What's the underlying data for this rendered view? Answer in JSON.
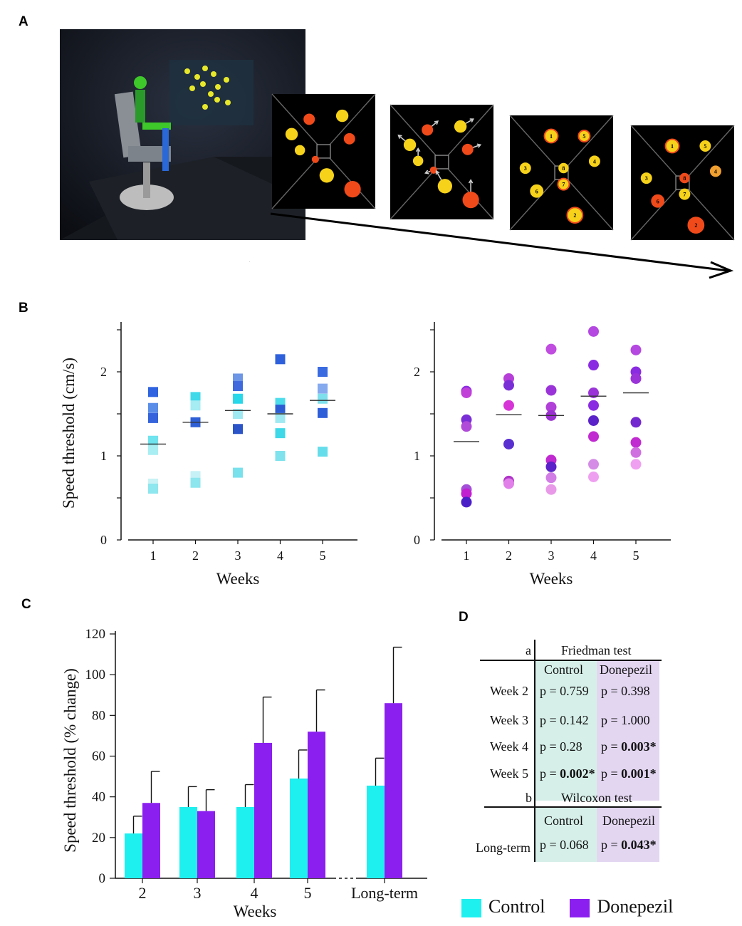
{
  "labels": {
    "a": "A",
    "b": "B",
    "c": "C",
    "d": "D"
  },
  "panel_a": {
    "scene_numbers": [
      "1",
      "2",
      "3",
      "4",
      "5",
      "6",
      "7",
      "8"
    ]
  },
  "chart_data": [
    {
      "id": "B-left",
      "type": "scatter",
      "ylabel": "Speed threshold (cm/s)",
      "xlabel": "Weeks",
      "x_ticks": [
        "1",
        "2",
        "3",
        "4",
        "5"
      ],
      "y_ticks": [
        "0",
        "1",
        "2"
      ],
      "ylim": [
        0,
        2.6
      ],
      "marker": "square",
      "points": [
        {
          "w": 1,
          "v": 1.76,
          "c": "#2f63e0"
        },
        {
          "w": 1,
          "v": 1.57,
          "c": "#5a8de8"
        },
        {
          "w": 1,
          "v": 1.45,
          "c": "#3563dc"
        },
        {
          "w": 1,
          "v": 1.18,
          "c": "#6fe3ee"
        },
        {
          "w": 1,
          "v": 1.07,
          "c": "#a8eef3"
        },
        {
          "w": 1,
          "v": 0.67,
          "c": "#c8f2f6"
        },
        {
          "w": 1,
          "v": 0.61,
          "c": "#8ee6ee"
        },
        {
          "w": 2,
          "v": 1.7,
          "c": "#3fd9ea"
        },
        {
          "w": 2,
          "v": 1.6,
          "c": "#a6ecf3"
        },
        {
          "w": 2,
          "v": 1.4,
          "c": "#2f5fd6"
        },
        {
          "w": 2,
          "v": 0.76,
          "c": "#c6f1f6"
        },
        {
          "w": 2,
          "v": 0.68,
          "c": "#8de5ee"
        },
        {
          "w": 3,
          "v": 1.92,
          "c": "#6d96e6"
        },
        {
          "w": 3,
          "v": 1.83,
          "c": "#3e6ade"
        },
        {
          "w": 3,
          "v": 1.68,
          "c": "#27d8ea"
        },
        {
          "w": 3,
          "v": 1.5,
          "c": "#9fe9f2"
        },
        {
          "w": 3,
          "v": 1.32,
          "c": "#2a54c8"
        },
        {
          "w": 3,
          "v": 0.8,
          "c": "#79e1ec"
        },
        {
          "w": 4,
          "v": 2.15,
          "c": "#2e60dc"
        },
        {
          "w": 4,
          "v": 1.63,
          "c": "#4ddcec"
        },
        {
          "w": 4,
          "v": 1.55,
          "c": "#2c5dd4"
        },
        {
          "w": 4,
          "v": 1.45,
          "c": "#9fe9f2"
        },
        {
          "w": 4,
          "v": 1.27,
          "c": "#3ed8e8"
        },
        {
          "w": 4,
          "v": 1.0,
          "c": "#7fe2ec"
        },
        {
          "w": 5,
          "v": 2.0,
          "c": "#3b6be0"
        },
        {
          "w": 5,
          "v": 1.8,
          "c": "#86aaee"
        },
        {
          "w": 5,
          "v": 1.68,
          "c": "#7de0ec"
        },
        {
          "w": 5,
          "v": 1.51,
          "c": "#2e5ed8"
        },
        {
          "w": 5,
          "v": 1.05,
          "c": "#66ddea"
        }
      ],
      "means": [
        1.14,
        1.4,
        1.54,
        1.5,
        1.66
      ]
    },
    {
      "id": "B-right",
      "type": "scatter",
      "xlabel": "Weeks",
      "x_ticks": [
        "1",
        "2",
        "3",
        "4",
        "5"
      ],
      "y_ticks": [
        "0",
        "1",
        "2"
      ],
      "ylim": [
        0,
        2.6
      ],
      "marker": "circle",
      "points": [
        {
          "w": 1,
          "v": 1.77,
          "c": "#8a2be2"
        },
        {
          "w": 1,
          "v": 1.75,
          "c": "#c040d8"
        },
        {
          "w": 1,
          "v": 1.43,
          "c": "#7a2fd6"
        },
        {
          "w": 1,
          "v": 1.35,
          "c": "#b04ad8"
        },
        {
          "w": 1,
          "v": 0.6,
          "c": "#a34fd8"
        },
        {
          "w": 1,
          "v": 0.55,
          "c": "#c21fd0"
        },
        {
          "w": 1,
          "v": 0.45,
          "c": "#4b1fc8"
        },
        {
          "w": 2,
          "v": 1.92,
          "c": "#b63fd8"
        },
        {
          "w": 2,
          "v": 1.84,
          "c": "#7a2fd6"
        },
        {
          "w": 2,
          "v": 1.6,
          "c": "#d634d6"
        },
        {
          "w": 2,
          "v": 1.14,
          "c": "#5a2fd0"
        },
        {
          "w": 2,
          "v": 0.7,
          "c": "#b034c8"
        },
        {
          "w": 2,
          "v": 0.67,
          "c": "#e080e8"
        },
        {
          "w": 3,
          "v": 2.27,
          "c": "#c04ce0"
        },
        {
          "w": 3,
          "v": 1.78,
          "c": "#9a34d8"
        },
        {
          "w": 3,
          "v": 1.58,
          "c": "#b040d8"
        },
        {
          "w": 3,
          "v": 1.48,
          "c": "#9a30d0"
        },
        {
          "w": 3,
          "v": 0.95,
          "c": "#c02ad0"
        },
        {
          "w": 3,
          "v": 0.87,
          "c": "#5a22c8"
        },
        {
          "w": 3,
          "v": 0.74,
          "c": "#d27ce6"
        },
        {
          "w": 3,
          "v": 0.6,
          "c": "#e89ae8"
        },
        {
          "w": 4,
          "v": 2.48,
          "c": "#b448e0"
        },
        {
          "w": 4,
          "v": 2.08,
          "c": "#8a2be2"
        },
        {
          "w": 4,
          "v": 1.75,
          "c": "#9a34d8"
        },
        {
          "w": 4,
          "v": 1.6,
          "c": "#8a2be2"
        },
        {
          "w": 4,
          "v": 1.42,
          "c": "#5a22c8"
        },
        {
          "w": 4,
          "v": 1.23,
          "c": "#c02ad0"
        },
        {
          "w": 4,
          "v": 0.9,
          "c": "#d48ce6"
        },
        {
          "w": 4,
          "v": 0.75,
          "c": "#ef9ff0"
        },
        {
          "w": 5,
          "v": 2.26,
          "c": "#b448e0"
        },
        {
          "w": 5,
          "v": 2.0,
          "c": "#8a2be2"
        },
        {
          "w": 5,
          "v": 1.92,
          "c": "#9a34d8"
        },
        {
          "w": 5,
          "v": 1.4,
          "c": "#7428d0"
        },
        {
          "w": 5,
          "v": 1.16,
          "c": "#c02ad0"
        },
        {
          "w": 5,
          "v": 1.04,
          "c": "#d070e0"
        },
        {
          "w": 5,
          "v": 0.9,
          "c": "#f0a0f0"
        }
      ],
      "means": [
        1.17,
        1.49,
        1.48,
        1.71,
        1.75
      ]
    },
    {
      "id": "C",
      "type": "bar",
      "ylabel": "Speed threshold  (% change)",
      "xlabel": "Weeks",
      "categories": [
        "2",
        "3",
        "4",
        "5",
        "Long-term"
      ],
      "y_ticks": [
        "0",
        "20",
        "40",
        "60",
        "80",
        "100",
        "120"
      ],
      "ylim": [
        0,
        120
      ],
      "series": [
        {
          "name": "Control",
          "color": "#1ef0f0",
          "values": [
            22,
            35,
            35,
            49,
            45.5
          ],
          "errors": [
            8.5,
            10,
            11,
            14,
            13.5
          ]
        },
        {
          "name": "Donepezil",
          "color": "#8b1ff0",
          "values": [
            37,
            33,
            66.5,
            72,
            86
          ],
          "errors": [
            15.5,
            10.5,
            22.5,
            20.5,
            27.5
          ]
        }
      ]
    }
  ],
  "table": {
    "a_label": "a",
    "a_title": "Friedman test",
    "b_label": "b",
    "b_title": "Wilcoxon test",
    "col_control": "Control",
    "col_donepezil": "Donepezil",
    "rows": [
      {
        "label": "Week 2",
        "control": "p = 0.759",
        "donepezil": "p = 0.398"
      },
      {
        "label": "Week 3",
        "control": "p = 0.142",
        "donepezil": "p = 1.000"
      },
      {
        "label": "Week 4",
        "control": "p = 0.28",
        "donepezil_prefix": "p = ",
        "donepezil_bold": "0.003*"
      },
      {
        "label": "Week 5",
        "control_prefix": "p = ",
        "control_bold": "0.002*",
        "donepezil_prefix": "p = ",
        "donepezil_bold": "0.001*"
      }
    ],
    "long_term": {
      "label": "Long-term",
      "control": "p = 0.068",
      "donepezil_prefix": "p = ",
      "donepezil_bold": "0.043*"
    },
    "control_bg": "#d6efe9",
    "donepezil_bg": "#e3d6f1"
  },
  "legend": [
    {
      "label": "Control",
      "color": "#1ef0f0"
    },
    {
      "label": "Donepezil",
      "color": "#8b1ff0"
    }
  ]
}
